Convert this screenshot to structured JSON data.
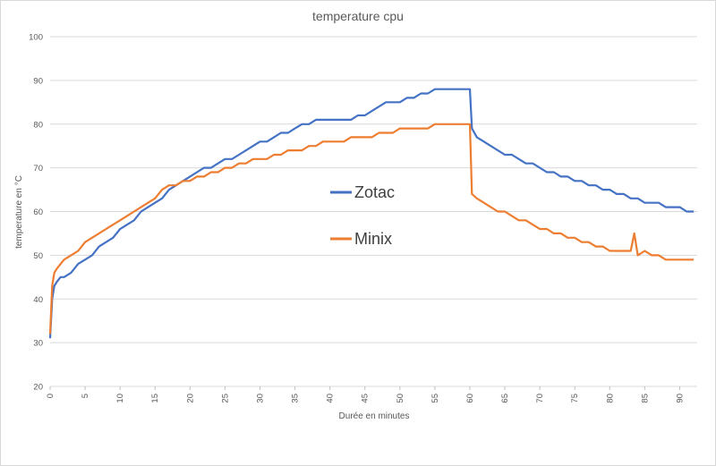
{
  "chart_data": {
    "type": "line",
    "title": "temperature cpu",
    "xlabel": "Durée en minutes",
    "ylabel": "temperature en °C",
    "xlim": [
      0,
      92.5
    ],
    "ylim": [
      20,
      100
    ],
    "x_ticks": [
      0,
      5,
      10,
      15,
      20,
      25,
      30,
      35,
      40,
      45,
      50,
      55,
      60,
      65,
      70,
      75,
      80,
      85,
      90
    ],
    "y_ticks": [
      20,
      30,
      40,
      50,
      60,
      70,
      80,
      90,
      100
    ],
    "grid": "horizontal",
    "legend_position": "center-right",
    "series": [
      {
        "name": "Zotac",
        "color": "#4472c4",
        "x": [
          0,
          0.3,
          0.6,
          1,
          1.5,
          2,
          3,
          4,
          5,
          6,
          7,
          8,
          9,
          10,
          11,
          12,
          13,
          14,
          15,
          16,
          17,
          18,
          19,
          20,
          21,
          22,
          23,
          24,
          25,
          26,
          27,
          28,
          29,
          30,
          31,
          32,
          33,
          34,
          35,
          36,
          37,
          38,
          39,
          40,
          41,
          42,
          43,
          44,
          45,
          46,
          47,
          48,
          49,
          50,
          51,
          52,
          53,
          54,
          55,
          56,
          57,
          58,
          59,
          60,
          60.3,
          61,
          62,
          63,
          64,
          65,
          66,
          67,
          68,
          69,
          70,
          71,
          72,
          73,
          74,
          75,
          76,
          77,
          78,
          79,
          80,
          81,
          82,
          83,
          84,
          85,
          86,
          87,
          88,
          89,
          90,
          91,
          92
        ],
        "y": [
          31,
          40,
          43,
          44,
          45,
          45,
          46,
          48,
          49,
          50,
          52,
          53,
          54,
          56,
          57,
          58,
          60,
          61,
          62,
          63,
          65,
          66,
          67,
          68,
          69,
          70,
          70,
          71,
          72,
          72,
          73,
          74,
          75,
          76,
          76,
          77,
          78,
          78,
          79,
          80,
          80,
          81,
          81,
          81,
          81,
          81,
          81,
          82,
          82,
          83,
          84,
          85,
          85,
          85,
          86,
          86,
          87,
          87,
          88,
          88,
          88,
          88,
          88,
          88,
          79,
          77,
          76,
          75,
          74,
          73,
          73,
          72,
          71,
          71,
          70,
          69,
          69,
          68,
          68,
          67,
          67,
          66,
          66,
          65,
          65,
          64,
          64,
          63,
          63,
          62,
          62,
          62,
          61,
          61,
          61,
          60,
          60
        ]
      },
      {
        "name": "Minix",
        "color": "#ed7d31",
        "x": [
          0,
          0.3,
          0.6,
          1,
          1.5,
          2,
          3,
          4,
          5,
          6,
          7,
          8,
          9,
          10,
          11,
          12,
          13,
          14,
          15,
          16,
          17,
          18,
          19,
          20,
          21,
          22,
          23,
          24,
          25,
          26,
          27,
          28,
          29,
          30,
          31,
          32,
          33,
          34,
          35,
          36,
          37,
          38,
          39,
          40,
          41,
          42,
          43,
          44,
          45,
          46,
          47,
          48,
          49,
          50,
          51,
          52,
          53,
          54,
          55,
          56,
          57,
          58,
          59,
          60,
          60.3,
          61,
          62,
          63,
          64,
          65,
          66,
          67,
          68,
          69,
          70,
          71,
          72,
          73,
          74,
          75,
          76,
          77,
          78,
          79,
          80,
          81,
          82,
          83,
          83.5,
          84,
          85,
          86,
          87,
          88,
          89,
          90,
          91,
          92
        ],
        "y": [
          32,
          43,
          46,
          47,
          48,
          49,
          50,
          51,
          53,
          54,
          55,
          56,
          57,
          58,
          59,
          60,
          61,
          62,
          63,
          65,
          66,
          66,
          67,
          67,
          68,
          68,
          69,
          69,
          70,
          70,
          71,
          71,
          72,
          72,
          72,
          73,
          73,
          74,
          74,
          74,
          75,
          75,
          76,
          76,
          76,
          76,
          77,
          77,
          77,
          77,
          78,
          78,
          78,
          79,
          79,
          79,
          79,
          79,
          80,
          80,
          80,
          80,
          80,
          80,
          64,
          63,
          62,
          61,
          60,
          60,
          59,
          58,
          58,
          57,
          56,
          56,
          55,
          55,
          54,
          54,
          53,
          53,
          52,
          52,
          51,
          51,
          51,
          51,
          55,
          50,
          51,
          50,
          50,
          49,
          49,
          49,
          49,
          49
        ]
      }
    ]
  }
}
